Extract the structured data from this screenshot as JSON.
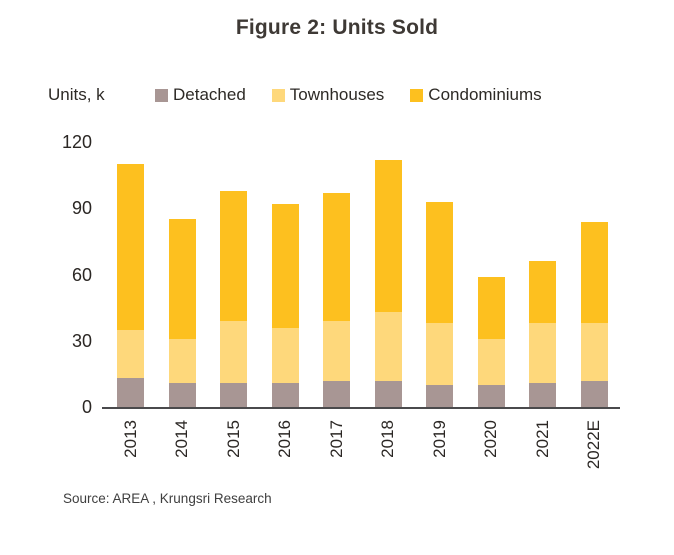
{
  "title": "Figure 2: Units Sold",
  "y_axis": {
    "units_label": "Units, k",
    "ticks": [
      0,
      30,
      60,
      90,
      120
    ]
  },
  "source": "Source: AREA , Krungsri Research",
  "colors": {
    "detached": "#A89694",
    "townhouses": "#FED87B",
    "condominiums": "#FDC01F",
    "title_text": "#3E3935",
    "axis_line": "#4A4A4C"
  },
  "chart_data": {
    "type": "bar",
    "stacked": true,
    "title": "Figure 2: Units Sold",
    "ylabel": "Units, k",
    "xlabel": "",
    "ylim": [
      0,
      120
    ],
    "yticks": [
      0,
      30,
      60,
      90,
      120
    ],
    "grid": false,
    "legend_position": "top",
    "categories": [
      "2013",
      "2014",
      "2015",
      "2016",
      "2017",
      "2018",
      "2019",
      "2020",
      "2021",
      "2022E"
    ],
    "series": [
      {
        "name": "Detached",
        "color": "#A89694",
        "values": [
          13,
          11,
          11,
          11,
          12,
          12,
          10,
          10,
          11,
          12
        ]
      },
      {
        "name": "Townhouses",
        "color": "#FED87B",
        "values": [
          22,
          20,
          28,
          25,
          27,
          31,
          28,
          21,
          27,
          26
        ]
      },
      {
        "name": "Condominiums",
        "color": "#FDC01F",
        "values": [
          75,
          54,
          59,
          56,
          58,
          69,
          55,
          28,
          28,
          46
        ]
      }
    ],
    "totals": [
      110,
      85,
      98,
      92,
      97,
      112,
      93,
      59,
      66,
      84
    ]
  }
}
